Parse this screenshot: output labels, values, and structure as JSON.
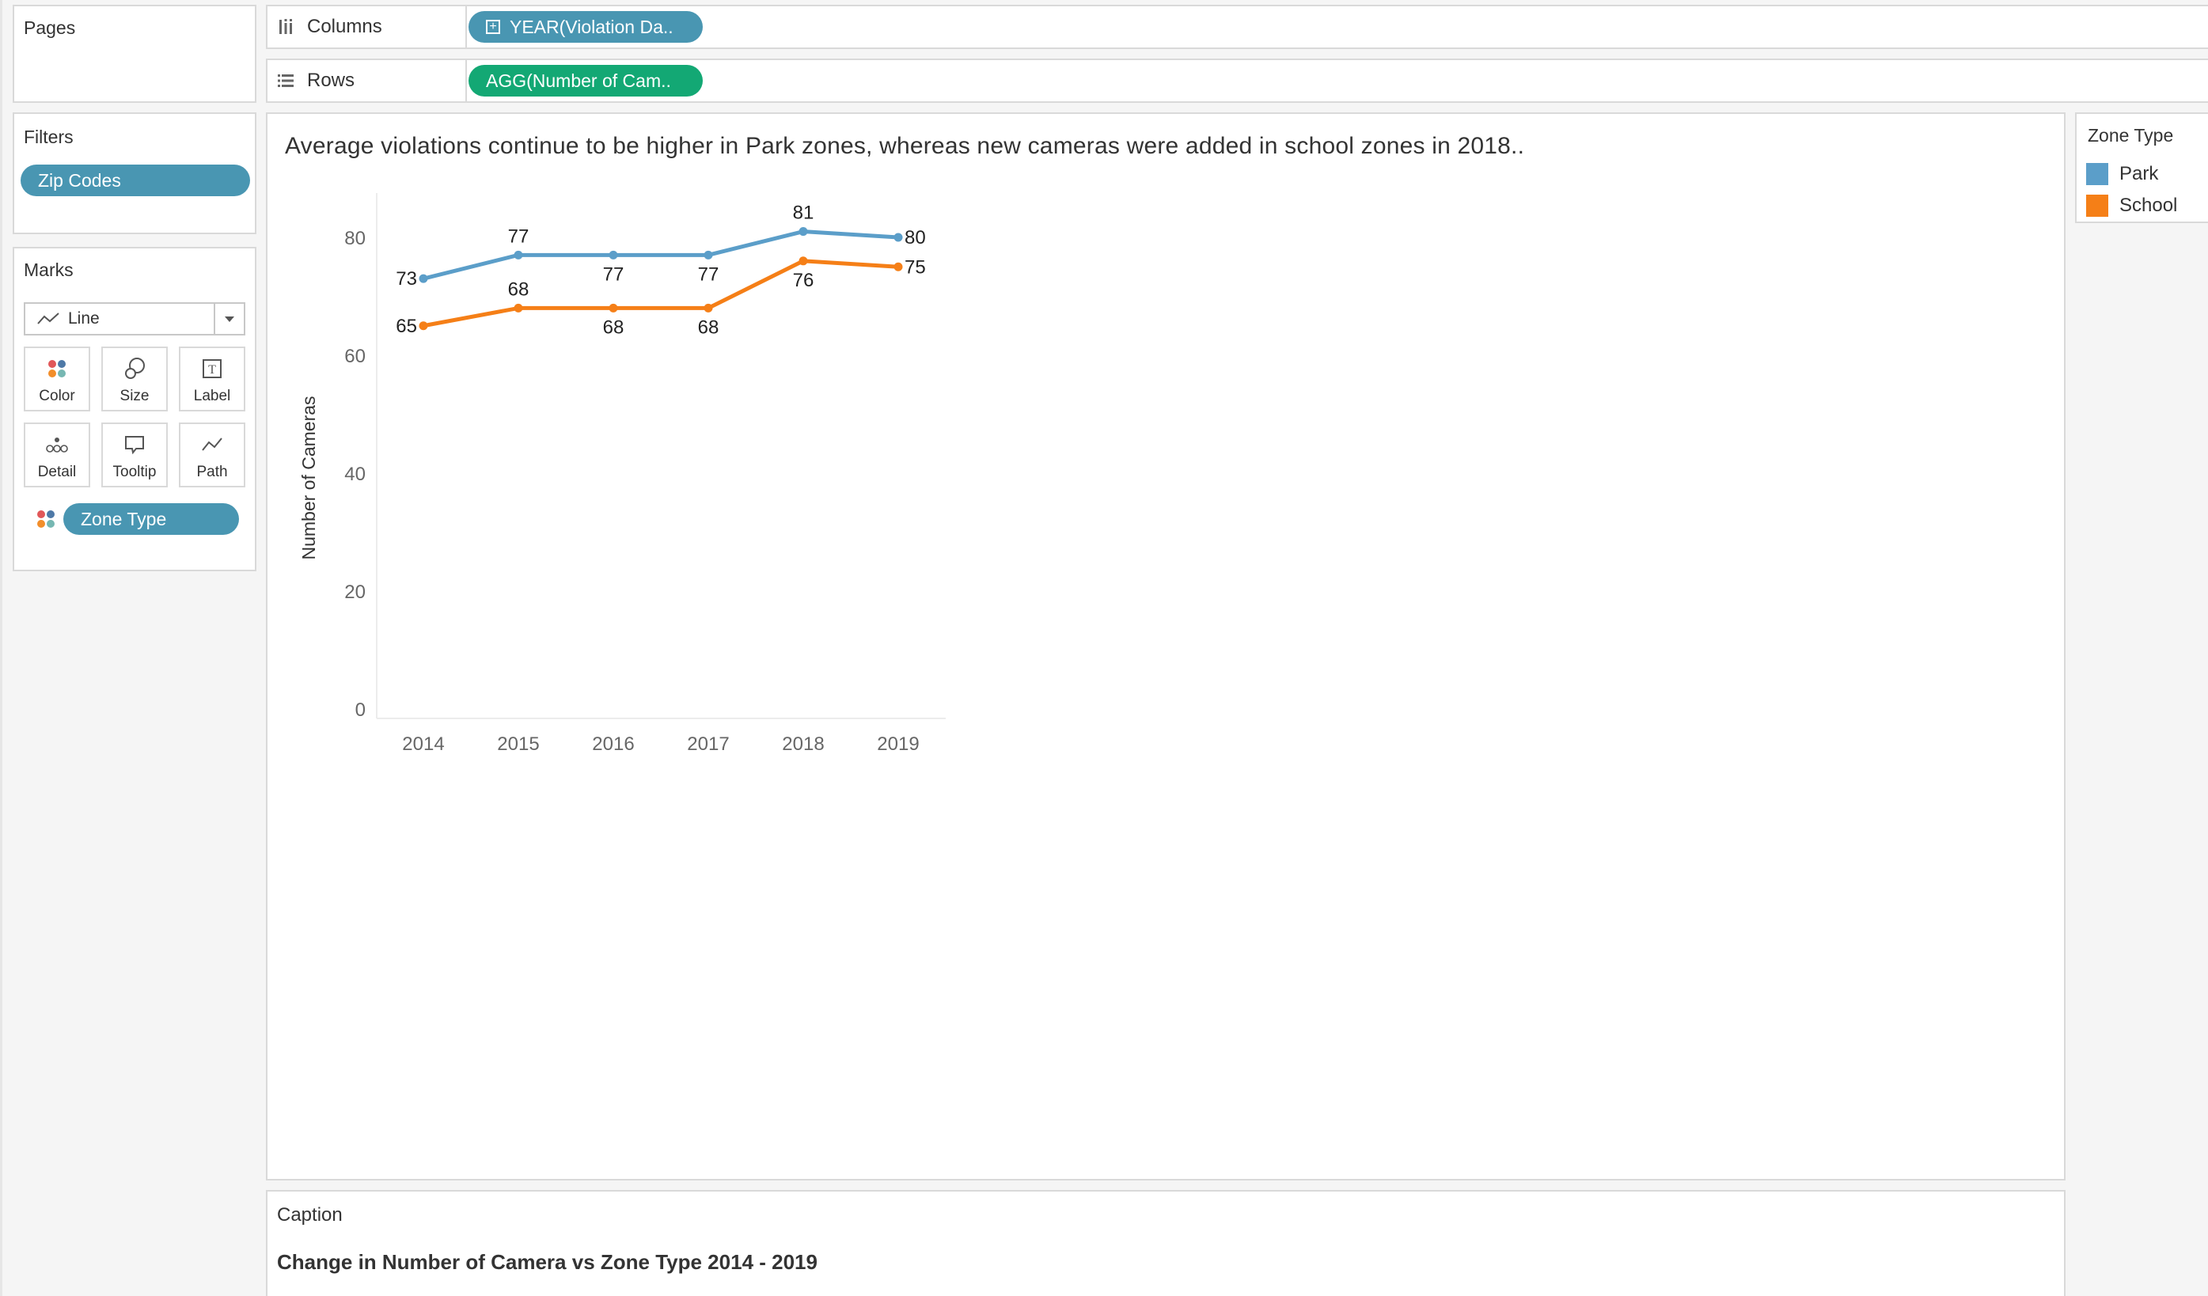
{
  "pages_card": {
    "title": "Pages"
  },
  "columns_shelf": {
    "label": "Columns",
    "pill": "YEAR(Violation Da.."
  },
  "rows_shelf": {
    "label": "Rows",
    "pill": "AGG(Number of Cam.."
  },
  "filters_card": {
    "title": "Filters",
    "pill": "Zip Codes"
  },
  "marks_card": {
    "title": "Marks",
    "mark_type": "Line",
    "buttons": [
      "Color",
      "Size",
      "Label",
      "Detail",
      "Tooltip",
      "Path"
    ],
    "pill": "Zone Type"
  },
  "view": {
    "title": "Average violations continue to be higher in Park zones, whereas new cameras were added in school zones in 2018.."
  },
  "legend": {
    "title": "Zone Type",
    "items": [
      {
        "label": "Park",
        "color": "#5b9ec9"
      },
      {
        "label": "School",
        "color": "#f57f17"
      }
    ]
  },
  "caption": {
    "title": "Caption",
    "text": "Change in Number of Camera vs Zone Type 2014 - 2019"
  },
  "chart_data": {
    "type": "line",
    "x": [
      "2014",
      "2015",
      "2016",
      "2017",
      "2018",
      "2019"
    ],
    "series": [
      {
        "name": "Park",
        "color": "#5b9ec9",
        "values": [
          73,
          77,
          77,
          77,
          81,
          80
        ]
      },
      {
        "name": "School",
        "color": "#f57f17",
        "values": [
          65,
          68,
          68,
          68,
          76,
          75
        ]
      }
    ],
    "ylabel": "Number of Cameras",
    "xlabel": "",
    "yticks": [
      0,
      20,
      40,
      60,
      80
    ],
    "ylim": [
      0,
      88
    ],
    "grid": false,
    "data_labels": true
  }
}
